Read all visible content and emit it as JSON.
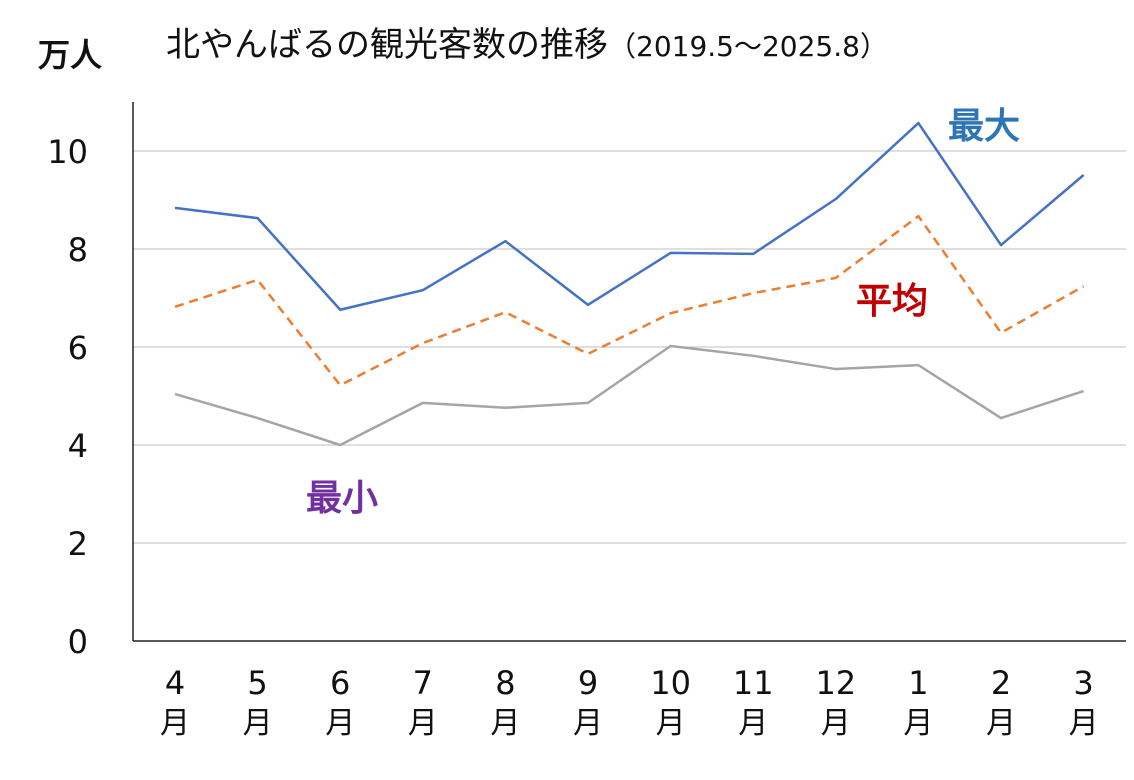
{
  "chart_data": {
    "type": "line",
    "title": "北やんばるの観光客数の推移",
    "subtitle": "（2019.5～2025.8）",
    "ylabel": "万人",
    "xlabel": "",
    "ylim": [
      0,
      10
    ],
    "yticks": [
      "0",
      "2",
      "4",
      "6",
      "8",
      "10"
    ],
    "ytick_values": [
      0,
      2,
      4,
      6,
      8,
      10
    ],
    "categories": [
      "4",
      "5",
      "6",
      "7",
      "8",
      "9",
      "10",
      "11",
      "12",
      "1",
      "2",
      "3"
    ],
    "category_suffix": "月",
    "grid": true,
    "series": [
      {
        "name": "最大",
        "color": "#4472C4",
        "label_color": "#2E75B6",
        "dash": "solid",
        "values": [
          8.84,
          8.63,
          6.76,
          7.16,
          8.16,
          6.86,
          7.92,
          7.9,
          9.02,
          10.57,
          8.08,
          9.51
        ]
      },
      {
        "name": "平均",
        "color": "#ED7D31",
        "label_color": "#C00000",
        "dash": "dashed",
        "values": [
          6.82,
          7.37,
          5.22,
          6.08,
          6.71,
          5.86,
          6.69,
          7.1,
          7.41,
          8.67,
          6.29,
          7.24
        ]
      },
      {
        "name": "最小",
        "color": "#A5A5A5",
        "label_color": "#7030A0",
        "dash": "solid",
        "values": [
          5.04,
          4.55,
          4.0,
          4.86,
          4.76,
          4.86,
          6.02,
          5.82,
          5.55,
          5.63,
          4.55,
          5.1
        ]
      }
    ]
  }
}
